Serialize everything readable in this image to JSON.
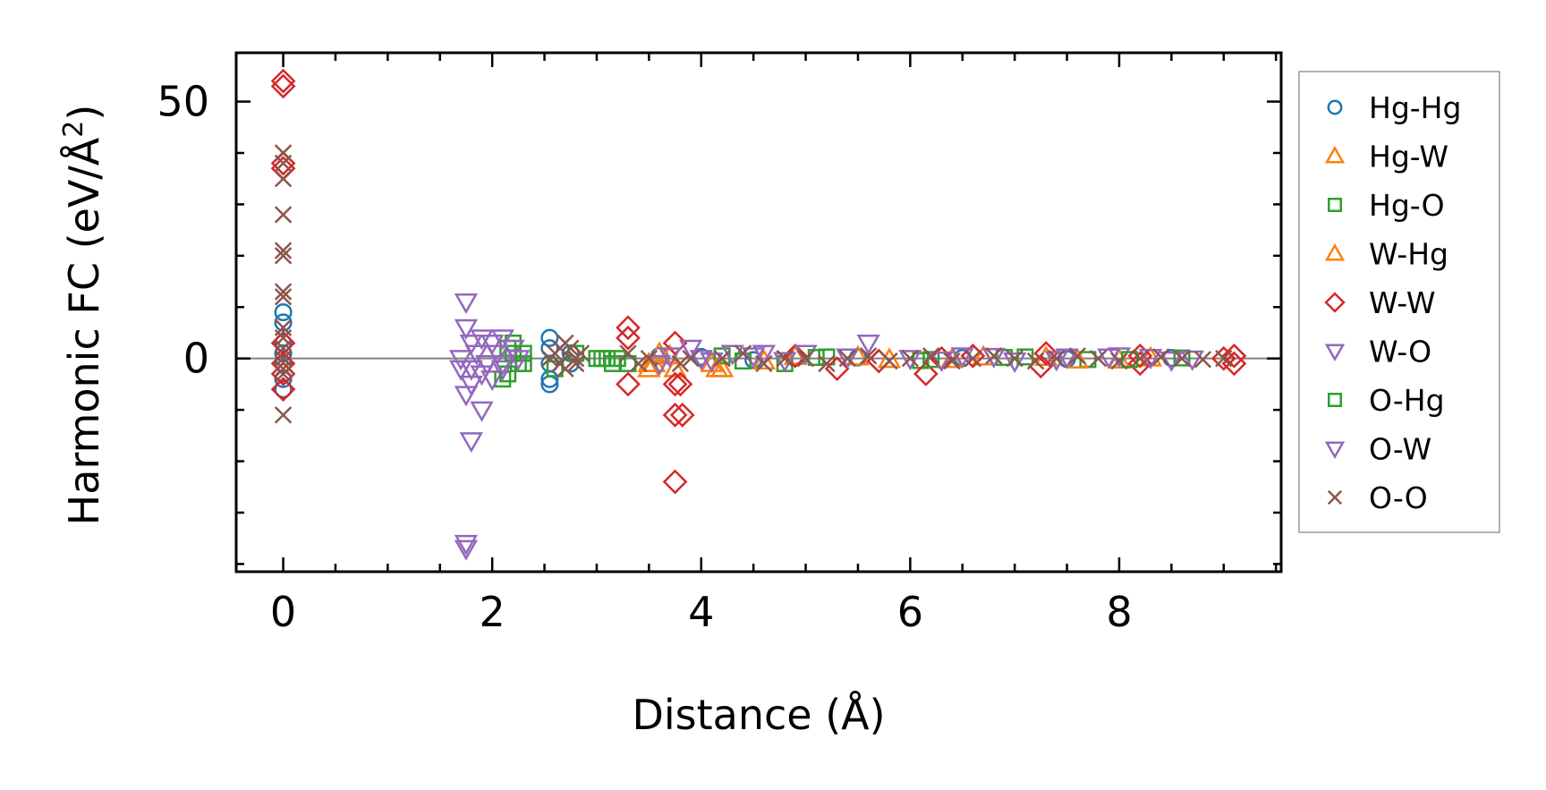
{
  "chart_data": {
    "type": "scatter",
    "xlabel": "Distance (Å)",
    "ylabel_main": "Harmonic FC (eV/Å",
    "ylabel_sup": "2",
    "ylabel_close": ")",
    "xlim": [
      -0.45,
      9.55
    ],
    "ylim": [
      -41.5,
      59.5
    ],
    "x_ticks": [
      0,
      2,
      4,
      6,
      8
    ],
    "x_tick_labels": [
      "0",
      "2",
      "4",
      "6",
      "8"
    ],
    "x_minor_step": 0.5,
    "y_ticks": [
      0,
      50
    ],
    "y_tick_labels": [
      "0",
      "50"
    ],
    "y_minor_step": 10,
    "zero_line": true,
    "grid": false,
    "legend_position": "right, outside plot",
    "series": [
      {
        "name": "Hg-Hg",
        "marker": "circle",
        "color": "#1f77b4",
        "points": [
          [
            0,
            9
          ],
          [
            0,
            7
          ],
          [
            0,
            3
          ],
          [
            0,
            1
          ],
          [
            0,
            -1
          ],
          [
            0,
            -4
          ],
          [
            0,
            -6
          ],
          [
            2.55,
            4
          ],
          [
            2.55,
            2
          ],
          [
            2.55,
            -1
          ],
          [
            2.55,
            -4
          ],
          [
            2.55,
            -5
          ],
          [
            2.75,
            1
          ],
          [
            2.75,
            -1
          ],
          [
            3.6,
            0.5
          ],
          [
            4.0,
            0.3
          ],
          [
            4.5,
            -0.3
          ],
          [
            5.5,
            0.2
          ],
          [
            6.5,
            0.1
          ],
          [
            7.5,
            -0.1
          ],
          [
            8.5,
            0.1
          ]
        ]
      },
      {
        "name": "Hg-W",
        "marker": "triangle-up",
        "color": "#ff7f0e",
        "points": [
          [
            3.5,
            -2
          ],
          [
            3.5,
            -1
          ],
          [
            3.6,
            1
          ],
          [
            3.75,
            -2
          ],
          [
            4.1,
            -1
          ],
          [
            4.2,
            -2
          ],
          [
            4.6,
            -0.5
          ],
          [
            5.5,
            0.3
          ],
          [
            6.4,
            -0.2
          ],
          [
            7.3,
            0.2
          ],
          [
            8.0,
            -0.3
          ]
        ]
      },
      {
        "name": "Hg-O",
        "marker": "square",
        "color": "#2ca02c",
        "points": [
          [
            2.1,
            -4
          ],
          [
            2.15,
            2
          ],
          [
            2.2,
            3
          ],
          [
            2.25,
            -1
          ],
          [
            2.3,
            1
          ],
          [
            2.6,
            -2
          ],
          [
            2.8,
            1
          ],
          [
            3.0,
            0
          ],
          [
            3.1,
            0
          ],
          [
            3.2,
            0
          ],
          [
            3.3,
            -1
          ],
          [
            4.2,
            0.5
          ],
          [
            4.8,
            -1
          ],
          [
            5.2,
            0.3
          ],
          [
            6.1,
            -0.4
          ],
          [
            6.9,
            0.2
          ],
          [
            7.7,
            -0.2
          ],
          [
            8.6,
            0.1
          ]
        ]
      },
      {
        "name": "W-Hg",
        "marker": "triangle-up",
        "color": "#ff7f0e",
        "points": [
          [
            3.55,
            -1
          ],
          [
            3.7,
            0.5
          ],
          [
            4.15,
            -2
          ],
          [
            4.9,
            0.4
          ],
          [
            5.8,
            -0.2
          ],
          [
            6.7,
            0.3
          ],
          [
            7.6,
            -0.3
          ],
          [
            8.3,
            0.1
          ]
        ]
      },
      {
        "name": "W-W",
        "marker": "diamond",
        "color": "#d62728",
        "points": [
          [
            0,
            54
          ],
          [
            0,
            53
          ],
          [
            0,
            38
          ],
          [
            0,
            37
          ],
          [
            0,
            3
          ],
          [
            0,
            -1
          ],
          [
            0,
            -3
          ],
          [
            0,
            -6
          ],
          [
            3.3,
            6
          ],
          [
            3.3,
            4
          ],
          [
            3.3,
            -5
          ],
          [
            3.75,
            3
          ],
          [
            3.75,
            -5
          ],
          [
            3.75,
            -11
          ],
          [
            3.75,
            -24
          ],
          [
            3.8,
            -5
          ],
          [
            3.82,
            -11
          ],
          [
            5.3,
            -2
          ],
          [
            6.15,
            -3
          ],
          [
            6.3,
            0
          ],
          [
            7.25,
            -1.5
          ],
          [
            7.3,
            1
          ],
          [
            8.2,
            -1
          ],
          [
            8.2,
            0.5
          ],
          [
            9.0,
            0
          ],
          [
            9.1,
            -1
          ],
          [
            9.1,
            0.5
          ],
          [
            4.9,
            0.5
          ],
          [
            5.7,
            -0.5
          ],
          [
            6.6,
            0.5
          ]
        ]
      },
      {
        "name": "W-O",
        "marker": "triangle-down",
        "color": "#9467bd",
        "points": [
          [
            1.75,
            11
          ],
          [
            1.75,
            6
          ],
          [
            1.75,
            -7
          ],
          [
            1.75,
            -36
          ],
          [
            1.75,
            -37
          ],
          [
            1.8,
            -16
          ],
          [
            1.9,
            -10
          ],
          [
            1.8,
            3
          ],
          [
            1.9,
            4
          ],
          [
            2.0,
            3
          ],
          [
            2.1,
            4
          ],
          [
            2.2,
            2
          ],
          [
            1.8,
            -2
          ],
          [
            1.9,
            -3
          ],
          [
            2.0,
            -4
          ],
          [
            2.1,
            -2
          ],
          [
            3.6,
            -1
          ],
          [
            3.9,
            2
          ],
          [
            4.0,
            0
          ],
          [
            4.3,
            1
          ],
          [
            4.6,
            1
          ],
          [
            5.0,
            1
          ],
          [
            5.6,
            3
          ],
          [
            6.0,
            0
          ],
          [
            6.5,
            0.5
          ],
          [
            7.0,
            -0.5
          ],
          [
            7.5,
            0.3
          ],
          [
            8.0,
            0.5
          ],
          [
            8.5,
            -0.3
          ]
        ]
      },
      {
        "name": "O-Hg",
        "marker": "square",
        "color": "#2ca02c",
        "points": [
          [
            2.15,
            -3
          ],
          [
            2.2,
            1
          ],
          [
            2.3,
            -1
          ],
          [
            3.05,
            0
          ],
          [
            3.15,
            -1
          ],
          [
            4.4,
            -0.5
          ],
          [
            5.1,
            0.2
          ],
          [
            6.2,
            -0.2
          ],
          [
            7.1,
            0.3
          ],
          [
            8.1,
            -0.2
          ]
        ]
      },
      {
        "name": "O-W",
        "marker": "triangle-down",
        "color": "#9467bd",
        "points": [
          [
            1.7,
            0
          ],
          [
            1.7,
            -2
          ],
          [
            1.8,
            -5
          ],
          [
            1.85,
            1
          ],
          [
            1.95,
            -1
          ],
          [
            2.05,
            1
          ],
          [
            2.1,
            -1
          ],
          [
            2.25,
            0
          ],
          [
            3.7,
            0.5
          ],
          [
            4.1,
            -0.5
          ],
          [
            4.5,
            0.5
          ],
          [
            4.8,
            -0.4
          ],
          [
            5.4,
            0.3
          ],
          [
            6.3,
            -0.3
          ],
          [
            6.8,
            0.4
          ],
          [
            7.4,
            -0.2
          ],
          [
            7.9,
            0.3
          ],
          [
            8.3,
            0.2
          ],
          [
            8.7,
            -0.1
          ]
        ]
      },
      {
        "name": "O-O",
        "marker": "x",
        "color": "#8c564b",
        "points": [
          [
            0,
            40
          ],
          [
            0,
            38
          ],
          [
            0,
            35
          ],
          [
            0,
            28
          ],
          [
            0,
            21
          ],
          [
            0,
            20
          ],
          [
            0,
            13
          ],
          [
            0,
            12
          ],
          [
            0,
            6
          ],
          [
            0,
            4
          ],
          [
            0,
            2
          ],
          [
            0,
            0
          ],
          [
            0,
            -2
          ],
          [
            0,
            -3
          ],
          [
            0,
            -11
          ],
          [
            2.55,
            0
          ],
          [
            2.6,
            1
          ],
          [
            2.65,
            2
          ],
          [
            2.65,
            -1
          ],
          [
            2.7,
            3
          ],
          [
            2.7,
            -2
          ],
          [
            2.75,
            2
          ],
          [
            2.8,
            0
          ],
          [
            2.8,
            -1
          ],
          [
            2.85,
            1
          ],
          [
            3.3,
            1
          ],
          [
            3.4,
            -1
          ],
          [
            3.5,
            0
          ],
          [
            3.8,
            -1
          ],
          [
            3.9,
            0
          ],
          [
            4.2,
            0
          ],
          [
            4.4,
            1
          ],
          [
            4.6,
            -1
          ],
          [
            4.8,
            0
          ],
          [
            5.0,
            0
          ],
          [
            5.2,
            -1
          ],
          [
            5.4,
            0
          ],
          [
            5.6,
            0.5
          ],
          [
            5.8,
            -0.5
          ],
          [
            6.0,
            0
          ],
          [
            6.2,
            0.5
          ],
          [
            6.4,
            -0.5
          ],
          [
            6.6,
            0
          ],
          [
            6.8,
            0.5
          ],
          [
            7.0,
            0
          ],
          [
            7.2,
            -0.5
          ],
          [
            7.4,
            0
          ],
          [
            7.6,
            0.5
          ],
          [
            7.8,
            0
          ],
          [
            8.0,
            -0.5
          ],
          [
            8.2,
            0
          ],
          [
            8.4,
            0.3
          ],
          [
            8.6,
            0
          ],
          [
            8.8,
            -0.2
          ],
          [
            9.0,
            0
          ]
        ]
      }
    ]
  }
}
